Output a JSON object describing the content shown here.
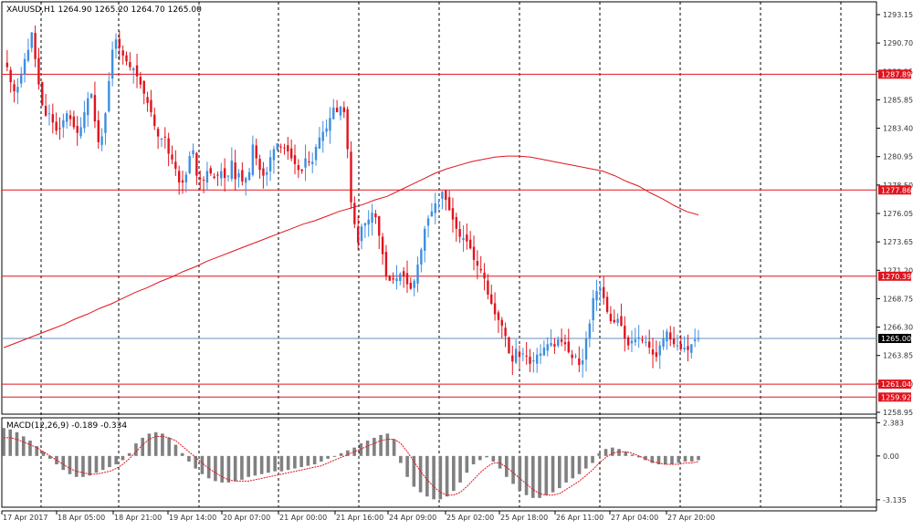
{
  "symbol_info": "XAUUSD,H1  1264.90 1265.20 1264.70 1265.00",
  "macd_info": "MACD(12,26,9) -0.189 -0.334",
  "colors": {
    "bull": "#3d8ee0",
    "bear": "#e0141e",
    "hline": "#e0141e",
    "current_line": "#6a8fbf",
    "ma": "#e0141e",
    "hist": "#808080",
    "signal": "#e0141e",
    "grid": "#000000",
    "axis_text": "#333333",
    "label_bg": "#e0141e",
    "current_bg": "#000000"
  },
  "price_axis_ticks": [
    "1293.15",
    "1290.70",
    "1288.25",
    "1285.85",
    "1283.40",
    "1280.95",
    "1278.50",
    "1276.05",
    "1273.65",
    "1271.20",
    "1268.75",
    "1266.30",
    "1263.85",
    "1261.40",
    "1258.95"
  ],
  "macd_axis_ticks": [
    "2.383",
    "0.00",
    "-3.135"
  ],
  "time_axis_labels": [
    "17 Apr 2017",
    "18 Apr 05:00",
    "18 Apr 21:00",
    "19 Apr 14:00",
    "20 Apr 07:00",
    "21 Apr 00:00",
    "21 Apr 16:00",
    "24 Apr 09:00",
    "25 Apr 02:00",
    "25 Apr 18:00",
    "26 Apr 11:00",
    "27 Apr 04:00",
    "27 Apr 20:00"
  ],
  "level_labels": [
    "1287.89",
    "1277.86",
    "1270.39",
    "1265.00",
    "1261.04",
    "1259.92"
  ],
  "chart_data": {
    "type": "candlestick",
    "symbol": "XAUUSD",
    "timeframe": "H1",
    "quote": {
      "open": 1264.9,
      "high": 1265.2,
      "low": 1264.7,
      "close": 1265.0
    },
    "price_range": [
      1258.6,
      1294.0
    ],
    "horizontal_levels": [
      1287.89,
      1277.86,
      1270.39,
      1261.04,
      1259.92
    ],
    "current_price": 1265.0,
    "close_path": [
      1288.8,
      1288.5,
      1287.2,
      1286.4,
      1286.8,
      1287.9,
      1289.2,
      1290.0,
      1291.5,
      1289.2,
      1287.0,
      1285.2,
      1284.3,
      1284.5,
      1283.7,
      1283.0,
      1283.2,
      1283.9,
      1284.5,
      1284.0,
      1283.3,
      1282.8,
      1283.3,
      1284.6,
      1285.8,
      1286.2,
      1283.8,
      1282.0,
      1282.5,
      1284.5,
      1287.3,
      1290.0,
      1290.9,
      1290.2,
      1289.5,
      1289.0,
      1288.5,
      1288.4,
      1287.7,
      1287.0,
      1286.2,
      1285.4,
      1284.6,
      1283.4,
      1282.5,
      1282.3,
      1282.4,
      1281.0,
      1280.5,
      1279.7,
      1278.5,
      1278.5,
      1279.2,
      1280.8,
      1281.3,
      1279.1,
      1278.8,
      1278.7,
      1279.5,
      1279.3,
      1278.9,
      1279.1,
      1279.5,
      1278.9,
      1279.1,
      1280.4,
      1278.8,
      1279.3,
      1278.6,
      1278.9,
      1279.4,
      1281.8,
      1280.6,
      1279.6,
      1279.1,
      1279.4,
      1280.7,
      1281.4,
      1281.9,
      1281.6,
      1281.5,
      1281.2,
      1280.6,
      1280.1,
      1279.6,
      1279.5,
      1280.6,
      1280.3,
      1280.3,
      1281.6,
      1282.4,
      1282.9,
      1283.2,
      1284.1,
      1285.0,
      1284.6,
      1285.1,
      1284.6,
      1281.4,
      1276.8,
      1274.9,
      1273.3,
      1274.7,
      1275.0,
      1275.3,
      1275.9,
      1275.5,
      1273.9,
      1272.3,
      1270.4,
      1270.0,
      1270.1,
      1270.2,
      1270.6,
      1270.4,
      1269.7,
      1269.3,
      1270.0,
      1271.4,
      1272.7,
      1274.5,
      1275.4,
      1276.0,
      1276.7,
      1276.9,
      1277.7,
      1277.0,
      1276.1,
      1275.3,
      1274.5,
      1273.8,
      1273.7,
      1273.4,
      1272.8,
      1271.8,
      1271.3,
      1270.9,
      1270.2,
      1268.8,
      1268.0,
      1267.1,
      1266.6,
      1266.1,
      1265.2,
      1263.7,
      1263.0,
      1264.1,
      1263.4,
      1263.7,
      1263.5,
      1262.8,
      1263.1,
      1263.6,
      1263.7,
      1264.2,
      1264.5,
      1264.6,
      1264.3,
      1264.9,
      1264.7,
      1264.5,
      1263.8,
      1263.3,
      1263.5,
      1262.7,
      1263.1,
      1265.0,
      1266.3,
      1268.5,
      1269.1,
      1269.4,
      1268.5,
      1267.3,
      1266.5,
      1266.4,
      1266.7,
      1266.1,
      1265.0,
      1264.4,
      1264.8,
      1264.9,
      1265.1,
      1264.8,
      1264.7,
      1264.2,
      1263.6,
      1263.4,
      1264.4,
      1265.0,
      1265.6,
      1264.9,
      1264.5,
      1264.4,
      1264.1,
      1264.2,
      1264.0,
      1264.5,
      1264.9,
      1265.0
    ],
    "ma_path": [
      1264.2,
      1264.6,
      1265.0,
      1265.4,
      1265.8,
      1266.2,
      1266.7,
      1267.1,
      1267.6,
      1268.0,
      1268.5,
      1269.0,
      1269.4,
      1269.9,
      1270.3,
      1270.8,
      1271.2,
      1271.7,
      1272.1,
      1272.5,
      1272.9,
      1273.3,
      1273.7,
      1274.1,
      1274.5,
      1274.9,
      1275.2,
      1275.6,
      1276.0,
      1276.3,
      1276.6,
      1277.0,
      1277.3,
      1277.8,
      1278.3,
      1278.8,
      1279.3,
      1279.7,
      1280.0,
      1280.3,
      1280.5,
      1280.7,
      1280.8,
      1280.8,
      1280.7,
      1280.5,
      1280.3,
      1280.1,
      1279.9,
      1279.7,
      1279.5,
      1279.1,
      1278.6,
      1278.2,
      1277.6,
      1277.1,
      1276.5,
      1276.0,
      1275.7
    ],
    "macd_range": [
      -3.6,
      2.6
    ],
    "macd_histogram": [
      2.0,
      1.9,
      1.7,
      1.4,
      1.1,
      0.7,
      0.3,
      -0.2,
      -0.6,
      -1.0,
      -1.3,
      -1.5,
      -1.5,
      -1.4,
      -1.2,
      -1.0,
      -0.8,
      -0.6,
      -0.3,
      0.2,
      0.9,
      1.3,
      1.6,
      1.7,
      1.6,
      1.3,
      0.8,
      0.2,
      -0.4,
      -0.9,
      -1.3,
      -1.6,
      -1.8,
      -1.9,
      -1.9,
      -1.8,
      -1.7,
      -1.5,
      -1.4,
      -1.3,
      -1.2,
      -1.1,
      -1.1,
      -1.0,
      -0.9,
      -0.8,
      -0.7,
      -0.6,
      -0.4,
      -0.2,
      0.0,
      0.2,
      0.4,
      0.6,
      0.9,
      1.1,
      1.3,
      1.5,
      1.6,
      1.2,
      -0.5,
      -1.5,
      -2.2,
      -2.6,
      -2.9,
      -3.1,
      -3.1,
      -2.9,
      -2.5,
      -1.9,
      -1.2,
      -0.6,
      -0.3,
      -0.1,
      -0.4,
      -0.9,
      -1.5,
      -2.0,
      -2.5,
      -2.8,
      -3.0,
      -3.0,
      -2.8,
      -2.6,
      -2.3,
      -1.9,
      -1.6,
      -1.3,
      -0.9,
      -0.5,
      0.2,
      0.5,
      0.6,
      0.5,
      0.3,
      0.1,
      -0.1,
      -0.3,
      -0.5,
      -0.6,
      -0.6,
      -0.6,
      -0.5,
      -0.4,
      -0.4,
      -0.3
    ],
    "macd_signal": [
      1.3,
      1.3,
      1.2,
      1.0,
      0.8,
      0.6,
      0.3,
      0.0,
      -0.3,
      -0.6,
      -0.9,
      -1.1,
      -1.2,
      -1.3,
      -1.3,
      -1.2,
      -1.1,
      -0.9,
      -0.6,
      -0.2,
      0.3,
      0.8,
      1.2,
      1.4,
      1.4,
      1.3,
      1.1,
      0.7,
      0.3,
      -0.1,
      -0.5,
      -0.9,
      -1.2,
      -1.5,
      -1.7,
      -1.8,
      -1.8,
      -1.8,
      -1.7,
      -1.6,
      -1.5,
      -1.4,
      -1.3,
      -1.2,
      -1.1,
      -1.0,
      -0.9,
      -0.8,
      -0.7,
      -0.5,
      -0.3,
      -0.1,
      0.1,
      0.3,
      0.5,
      0.7,
      0.9,
      1.1,
      1.2,
      1.2,
      0.9,
      0.3,
      -0.4,
      -1.1,
      -1.7,
      -2.2,
      -2.6,
      -2.8,
      -2.8,
      -2.6,
      -2.2,
      -1.7,
      -1.2,
      -0.8,
      -0.5,
      -0.5,
      -0.8,
      -1.2,
      -1.6,
      -2.0,
      -2.4,
      -2.7,
      -2.8,
      -2.8,
      -2.7,
      -2.4,
      -2.1,
      -1.8,
      -1.4,
      -1.0,
      -0.5,
      -0.1,
      0.2,
      0.3,
      0.3,
      0.2,
      0.0,
      -0.2,
      -0.4,
      -0.5,
      -0.6,
      -0.6,
      -0.6,
      -0.5,
      -0.5,
      -0.4
    ]
  }
}
